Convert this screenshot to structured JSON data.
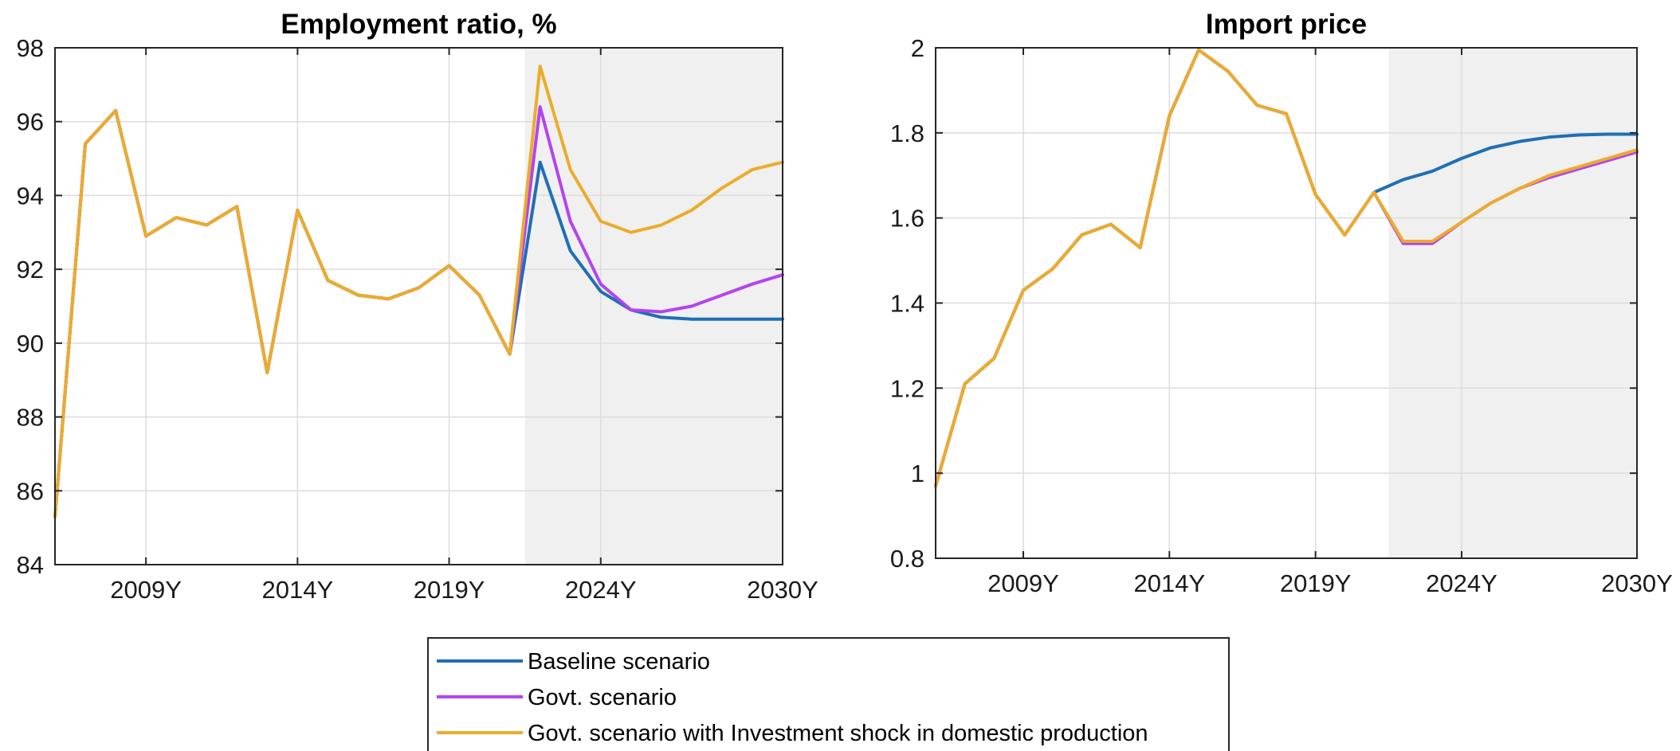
{
  "legend": {
    "placement": "bottom-center",
    "entries": [
      {
        "label": "Baseline scenario",
        "color": "#1f6fb4"
      },
      {
        "label": "Govt. scenario",
        "color": "#b344f0"
      },
      {
        "label": "Govt. scenario with Investment shock in domestic production",
        "color": "#ebac2a"
      }
    ]
  },
  "chart_data": [
    {
      "type": "line",
      "title": "Employment ratio, %",
      "xlabel": "",
      "ylabel": "",
      "x": [
        2006,
        2007,
        2008,
        2009,
        2010,
        2011,
        2012,
        2013,
        2014,
        2015,
        2016,
        2017,
        2018,
        2019,
        2020,
        2021,
        2022,
        2023,
        2024,
        2025,
        2026,
        2027,
        2028,
        2029,
        2030
      ],
      "xlim": [
        2006,
        2030
      ],
      "ylim": [
        84,
        98
      ],
      "xticks": [
        {
          "value": 2009,
          "label": "2009Y"
        },
        {
          "value": 2014,
          "label": "2014Y"
        },
        {
          "value": 2019,
          "label": "2019Y"
        },
        {
          "value": 2024,
          "label": "2024Y"
        },
        {
          "value": 2030,
          "label": "2030Y"
        }
      ],
      "yticks": [
        {
          "value": 84,
          "label": "84"
        },
        {
          "value": 86,
          "label": "86"
        },
        {
          "value": 88,
          "label": "88"
        },
        {
          "value": 90,
          "label": "90"
        },
        {
          "value": 92,
          "label": "92"
        },
        {
          "value": 94,
          "label": "94"
        },
        {
          "value": 96,
          "label": "96"
        },
        {
          "value": 98,
          "label": "98"
        }
      ],
      "grid": true,
      "forecast_shading": {
        "from": 2021.5,
        "to": 2030
      },
      "series": [
        {
          "name": "Baseline scenario",
          "color": "#1f6fb4",
          "values": [
            85.3,
            95.4,
            96.3,
            92.9,
            93.4,
            93.2,
            93.7,
            89.2,
            93.6,
            91.7,
            91.3,
            91.2,
            91.5,
            92.1,
            91.3,
            89.7,
            94.9,
            92.5,
            91.4,
            90.9,
            90.7,
            90.65,
            90.65,
            90.65,
            90.65
          ]
        },
        {
          "name": "Govt. scenario",
          "color": "#b344f0",
          "values": [
            85.3,
            95.4,
            96.3,
            92.9,
            93.4,
            93.2,
            93.7,
            89.2,
            93.6,
            91.7,
            91.3,
            91.2,
            91.5,
            92.1,
            91.3,
            89.7,
            96.4,
            93.3,
            91.6,
            90.9,
            90.85,
            91.0,
            91.3,
            91.6,
            91.85
          ]
        },
        {
          "name": "Govt. scenario with Investment shock in domestic production",
          "color": "#ebac2a",
          "values": [
            85.3,
            95.4,
            96.3,
            92.9,
            93.4,
            93.2,
            93.7,
            89.2,
            93.6,
            91.7,
            91.3,
            91.2,
            91.5,
            92.1,
            91.3,
            89.7,
            97.5,
            94.7,
            93.3,
            93.0,
            93.2,
            93.6,
            94.2,
            94.7,
            94.9
          ]
        }
      ]
    },
    {
      "type": "line",
      "title": "Import price",
      "xlabel": "",
      "ylabel": "",
      "x": [
        2006,
        2007,
        2008,
        2009,
        2010,
        2011,
        2012,
        2013,
        2014,
        2015,
        2016,
        2017,
        2018,
        2019,
        2020,
        2021,
        2022,
        2023,
        2024,
        2025,
        2026,
        2027,
        2028,
        2029,
        2030
      ],
      "xlim": [
        2006,
        2030
      ],
      "ylim": [
        0.8,
        2
      ],
      "xticks": [
        {
          "value": 2009,
          "label": "2009Y"
        },
        {
          "value": 2014,
          "label": "2014Y"
        },
        {
          "value": 2019,
          "label": "2019Y"
        },
        {
          "value": 2024,
          "label": "2024Y"
        },
        {
          "value": 2030,
          "label": "2030Y"
        }
      ],
      "yticks": [
        {
          "value": 0.8,
          "label": "0.8"
        },
        {
          "value": 1,
          "label": "1"
        },
        {
          "value": 1.2,
          "label": "1.2"
        },
        {
          "value": 1.4,
          "label": "1.4"
        },
        {
          "value": 1.6,
          "label": "1.6"
        },
        {
          "value": 1.8,
          "label": "1.8"
        },
        {
          "value": 2,
          "label": "2"
        }
      ],
      "grid": true,
      "forecast_shading": {
        "from": 2021.5,
        "to": 2030
      },
      "series": [
        {
          "name": "Baseline scenario",
          "color": "#1f6fb4",
          "values": [
            0.97,
            1.21,
            1.27,
            1.43,
            1.48,
            1.56,
            1.585,
            1.53,
            1.84,
            1.995,
            1.945,
            1.865,
            1.845,
            1.655,
            1.56,
            1.66,
            1.69,
            1.71,
            1.74,
            1.765,
            1.78,
            1.79,
            1.795,
            1.797,
            1.797
          ]
        },
        {
          "name": "Govt. scenario",
          "color": "#b344f0",
          "values": [
            0.97,
            1.21,
            1.27,
            1.43,
            1.48,
            1.56,
            1.585,
            1.53,
            1.84,
            1.995,
            1.945,
            1.865,
            1.845,
            1.655,
            1.56,
            1.66,
            1.54,
            1.54,
            1.59,
            1.635,
            1.67,
            1.695,
            1.715,
            1.735,
            1.755
          ]
        },
        {
          "name": "Govt. scenario with Investment shock in domestic production",
          "color": "#ebac2a",
          "values": [
            0.97,
            1.21,
            1.27,
            1.43,
            1.48,
            1.56,
            1.585,
            1.53,
            1.84,
            1.995,
            1.945,
            1.865,
            1.845,
            1.655,
            1.56,
            1.66,
            1.545,
            1.545,
            1.59,
            1.635,
            1.67,
            1.7,
            1.72,
            1.74,
            1.76
          ]
        }
      ]
    }
  ]
}
